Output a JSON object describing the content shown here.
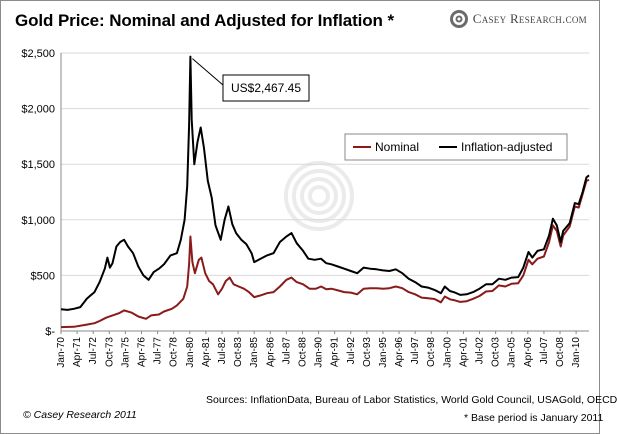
{
  "header": {
    "title": "Gold Price: Nominal and Adjusted for Inflation *",
    "brand": "Casey Research.com",
    "brand_icon": "target-icon"
  },
  "footer": {
    "sources": "Sources: InflationData, Bureau of Labor Statistics, World Gold Council, USAGold, OECD",
    "copyright": "© Casey Research 2011",
    "base_note": "* Base period is January 2011"
  },
  "chart_data": {
    "type": "line",
    "title": "Gold Price: Nominal and Adjusted for Inflation *",
    "xlabel": "",
    "ylabel": "",
    "ylim": [
      0,
      2500
    ],
    "xlim": [
      1970.0,
      2011.0
    ],
    "grid": "horizontal",
    "legend": "top-right",
    "y_ticks": [
      {
        "value": 0,
        "label": "$-"
      },
      {
        "value": 500,
        "label": "$500"
      },
      {
        "value": 1000,
        "label": "$1,000"
      },
      {
        "value": 1500,
        "label": "$1,500"
      },
      {
        "value": 2000,
        "label": "$2,000"
      },
      {
        "value": 2500,
        "label": "$2,500"
      }
    ],
    "x_ticks": [
      {
        "value": 1970.0,
        "label": "Jan-70"
      },
      {
        "value": 1971.25,
        "label": "Apr-71"
      },
      {
        "value": 1972.5,
        "label": "Jul-72"
      },
      {
        "value": 1973.75,
        "label": "Oct-73"
      },
      {
        "value": 1975.0,
        "label": "Jan-75"
      },
      {
        "value": 1976.25,
        "label": "Apr-76"
      },
      {
        "value": 1977.5,
        "label": "Jul-77"
      },
      {
        "value": 1978.75,
        "label": "Oct-78"
      },
      {
        "value": 1980.0,
        "label": "Jan-80"
      },
      {
        "value": 1981.25,
        "label": "Apr-81"
      },
      {
        "value": 1982.5,
        "label": "Jul-82"
      },
      {
        "value": 1983.75,
        "label": "Oct-83"
      },
      {
        "value": 1985.0,
        "label": "Jan-85"
      },
      {
        "value": 1986.25,
        "label": "Apr-86"
      },
      {
        "value": 1987.5,
        "label": "Jul-87"
      },
      {
        "value": 1988.75,
        "label": "Oct-88"
      },
      {
        "value": 1990.0,
        "label": "Jan-90"
      },
      {
        "value": 1991.25,
        "label": "Apr-91"
      },
      {
        "value": 1992.5,
        "label": "Jul-92"
      },
      {
        "value": 1993.75,
        "label": "Oct-93"
      },
      {
        "value": 1995.0,
        "label": "Jan-95"
      },
      {
        "value": 1996.25,
        "label": "Apr-96"
      },
      {
        "value": 1997.5,
        "label": "Jul-97"
      },
      {
        "value": 1998.75,
        "label": "Oct-98"
      },
      {
        "value": 2000.0,
        "label": "Jan-00"
      },
      {
        "value": 2001.25,
        "label": "Apr-01"
      },
      {
        "value": 2002.5,
        "label": "Jul-02"
      },
      {
        "value": 2003.75,
        "label": "Oct-03"
      },
      {
        "value": 2005.0,
        "label": "Jan-05"
      },
      {
        "value": 2006.25,
        "label": "Apr-06"
      },
      {
        "value": 2007.5,
        "label": "Jul-07"
      },
      {
        "value": 2008.75,
        "label": "Oct-08"
      },
      {
        "value": 2010.0,
        "label": "Jan-10"
      }
    ],
    "annotation": {
      "label": "US$2,467.45",
      "x": 1980.05,
      "y": 2467.45
    },
    "series": [
      {
        "name": "Nominal",
        "color": "#8b1a1a",
        "points": [
          [
            1970.0,
            35
          ],
          [
            1971.0,
            38
          ],
          [
            1972.0,
            58
          ],
          [
            1972.6,
            70
          ],
          [
            1973.0,
            90
          ],
          [
            1973.5,
            120
          ],
          [
            1974.0,
            140
          ],
          [
            1974.5,
            160
          ],
          [
            1974.9,
            185
          ],
          [
            1975.5,
            165
          ],
          [
            1976.0,
            130
          ],
          [
            1976.6,
            110
          ],
          [
            1977.0,
            140
          ],
          [
            1977.6,
            148
          ],
          [
            1978.0,
            175
          ],
          [
            1978.6,
            200
          ],
          [
            1979.0,
            230
          ],
          [
            1979.5,
            290
          ],
          [
            1979.8,
            400
          ],
          [
            1979.95,
            600
          ],
          [
            1980.05,
            850
          ],
          [
            1980.2,
            620
          ],
          [
            1980.4,
            520
          ],
          [
            1980.7,
            640
          ],
          [
            1980.9,
            660
          ],
          [
            1981.2,
            520
          ],
          [
            1981.5,
            450
          ],
          [
            1981.8,
            420
          ],
          [
            1982.2,
            330
          ],
          [
            1982.5,
            380
          ],
          [
            1982.8,
            450
          ],
          [
            1983.1,
            480
          ],
          [
            1983.4,
            420
          ],
          [
            1983.8,
            400
          ],
          [
            1984.2,
            380
          ],
          [
            1984.6,
            350
          ],
          [
            1985.0,
            305
          ],
          [
            1985.5,
            320
          ],
          [
            1986.0,
            340
          ],
          [
            1986.5,
            350
          ],
          [
            1987.0,
            400
          ],
          [
            1987.5,
            460
          ],
          [
            1987.9,
            480
          ],
          [
            1988.3,
            440
          ],
          [
            1988.8,
            420
          ],
          [
            1989.3,
            380
          ],
          [
            1989.8,
            380
          ],
          [
            1990.2,
            400
          ],
          [
            1990.6,
            375
          ],
          [
            1991.0,
            380
          ],
          [
            1991.5,
            365
          ],
          [
            1992.0,
            350
          ],
          [
            1992.5,
            345
          ],
          [
            1993.0,
            330
          ],
          [
            1993.5,
            380
          ],
          [
            1994.0,
            385
          ],
          [
            1994.5,
            385
          ],
          [
            1995.0,
            380
          ],
          [
            1995.5,
            385
          ],
          [
            1996.0,
            400
          ],
          [
            1996.5,
            385
          ],
          [
            1997.0,
            350
          ],
          [
            1997.5,
            330
          ],
          [
            1998.0,
            300
          ],
          [
            1998.5,
            295
          ],
          [
            1999.0,
            288
          ],
          [
            1999.5,
            258
          ],
          [
            1999.8,
            310
          ],
          [
            2000.2,
            285
          ],
          [
            2000.6,
            275
          ],
          [
            2001.0,
            262
          ],
          [
            2001.5,
            268
          ],
          [
            2002.0,
            290
          ],
          [
            2002.5,
            315
          ],
          [
            2003.0,
            355
          ],
          [
            2003.5,
            360
          ],
          [
            2004.0,
            410
          ],
          [
            2004.5,
            400
          ],
          [
            2005.0,
            425
          ],
          [
            2005.5,
            430
          ],
          [
            2005.9,
            500
          ],
          [
            2006.3,
            640
          ],
          [
            2006.6,
            600
          ],
          [
            2007.0,
            650
          ],
          [
            2007.5,
            670
          ],
          [
            2007.9,
            800
          ],
          [
            2008.2,
            950
          ],
          [
            2008.5,
            900
          ],
          [
            2008.8,
            760
          ],
          [
            2009.0,
            860
          ],
          [
            2009.5,
            940
          ],
          [
            2009.9,
            1120
          ],
          [
            2010.2,
            1110
          ],
          [
            2010.5,
            1230
          ],
          [
            2010.8,
            1350
          ],
          [
            2011.0,
            1360
          ]
        ]
      },
      {
        "name": "Inflation-adjusted",
        "color": "#000000",
        "points": [
          [
            1970.0,
            195
          ],
          [
            1970.5,
            190
          ],
          [
            1971.0,
            200
          ],
          [
            1971.5,
            215
          ],
          [
            1972.0,
            290
          ],
          [
            1972.3,
            320
          ],
          [
            1972.6,
            350
          ],
          [
            1973.0,
            440
          ],
          [
            1973.4,
            560
          ],
          [
            1973.6,
            660
          ],
          [
            1973.8,
            570
          ],
          [
            1974.0,
            610
          ],
          [
            1974.3,
            760
          ],
          [
            1974.6,
            800
          ],
          [
            1974.9,
            820
          ],
          [
            1975.2,
            760
          ],
          [
            1975.6,
            700
          ],
          [
            1976.0,
            580
          ],
          [
            1976.4,
            500
          ],
          [
            1976.8,
            460
          ],
          [
            1977.2,
            530
          ],
          [
            1977.6,
            560
          ],
          [
            1978.0,
            600
          ],
          [
            1978.5,
            680
          ],
          [
            1979.0,
            700
          ],
          [
            1979.3,
            820
          ],
          [
            1979.6,
            1000
          ],
          [
            1979.8,
            1300
          ],
          [
            1979.95,
            1850
          ],
          [
            1980.05,
            2467.45
          ],
          [
            1980.15,
            1900
          ],
          [
            1980.35,
            1500
          ],
          [
            1980.6,
            1700
          ],
          [
            1980.85,
            1830
          ],
          [
            1981.1,
            1650
          ],
          [
            1981.4,
            1350
          ],
          [
            1981.7,
            1200
          ],
          [
            1982.0,
            950
          ],
          [
            1982.4,
            820
          ],
          [
            1982.7,
            1000
          ],
          [
            1983.0,
            1120
          ],
          [
            1983.3,
            960
          ],
          [
            1983.6,
            880
          ],
          [
            1984.0,
            820
          ],
          [
            1984.4,
            780
          ],
          [
            1984.8,
            700
          ],
          [
            1985.0,
            620
          ],
          [
            1985.5,
            650
          ],
          [
            1986.0,
            680
          ],
          [
            1986.5,
            700
          ],
          [
            1987.0,
            800
          ],
          [
            1987.5,
            850
          ],
          [
            1987.9,
            880
          ],
          [
            1988.3,
            790
          ],
          [
            1988.8,
            720
          ],
          [
            1989.2,
            650
          ],
          [
            1989.7,
            640
          ],
          [
            1990.2,
            650
          ],
          [
            1990.6,
            610
          ],
          [
            1991.0,
            600
          ],
          [
            1991.5,
            580
          ],
          [
            1992.0,
            560
          ],
          [
            1992.5,
            540
          ],
          [
            1993.0,
            520
          ],
          [
            1993.5,
            570
          ],
          [
            1994.0,
            560
          ],
          [
            1994.5,
            555
          ],
          [
            1995.0,
            545
          ],
          [
            1995.5,
            540
          ],
          [
            1996.0,
            555
          ],
          [
            1996.5,
            520
          ],
          [
            1997.0,
            470
          ],
          [
            1997.5,
            440
          ],
          [
            1998.0,
            400
          ],
          [
            1998.5,
            390
          ],
          [
            1999.0,
            370
          ],
          [
            1999.5,
            340
          ],
          [
            1999.8,
            400
          ],
          [
            2000.2,
            360
          ],
          [
            2000.6,
            345
          ],
          [
            2001.0,
            325
          ],
          [
            2001.5,
            330
          ],
          [
            2002.0,
            350
          ],
          [
            2002.5,
            380
          ],
          [
            2003.0,
            420
          ],
          [
            2003.5,
            420
          ],
          [
            2004.0,
            470
          ],
          [
            2004.5,
            460
          ],
          [
            2005.0,
            480
          ],
          [
            2005.5,
            485
          ],
          [
            2005.9,
            570
          ],
          [
            2006.3,
            710
          ],
          [
            2006.6,
            660
          ],
          [
            2007.0,
            720
          ],
          [
            2007.5,
            735
          ],
          [
            2007.9,
            860
          ],
          [
            2008.2,
            1010
          ],
          [
            2008.5,
            950
          ],
          [
            2008.8,
            800
          ],
          [
            2009.0,
            900
          ],
          [
            2009.5,
            970
          ],
          [
            2009.9,
            1150
          ],
          [
            2010.2,
            1140
          ],
          [
            2010.5,
            1250
          ],
          [
            2010.8,
            1380
          ],
          [
            2011.0,
            1400
          ]
        ]
      }
    ]
  }
}
